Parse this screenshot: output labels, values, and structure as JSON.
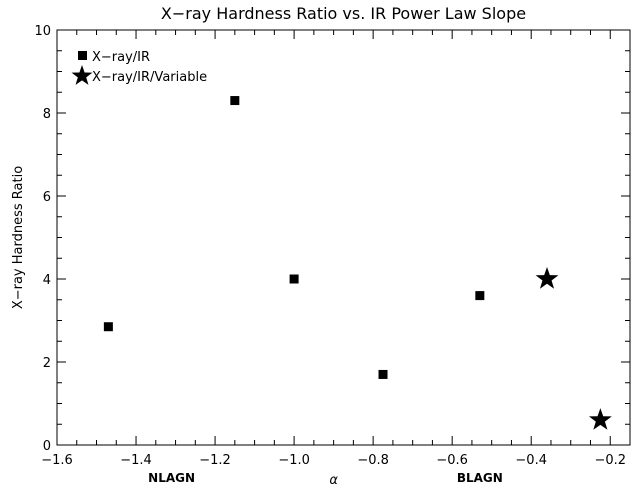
{
  "chart_data": {
    "type": "scatter",
    "title": "X−ray Hardness Ratio vs. IR Power Law Slope",
    "xlabel": "α",
    "ylabel": "X−ray Hardness Ratio",
    "xlim": [
      -1.6,
      -0.15
    ],
    "ylim": [
      0,
      10
    ],
    "x_ticks": [
      -1.6,
      -1.4,
      -1.2,
      -1.0,
      -0.8,
      -0.6,
      -0.4,
      -0.2
    ],
    "x_tick_labels": [
      "−1.6",
      "−1.4",
      "−1.2",
      "−1.0",
      "−0.8",
      "−0.6",
      "−0.4",
      "−0.2"
    ],
    "y_ticks": [
      0,
      2,
      4,
      6,
      8,
      10
    ],
    "y_tick_labels": [
      "0",
      "2",
      "4",
      "6",
      "8",
      "10"
    ],
    "x_region_labels": [
      {
        "text": "NLAGN",
        "x": -1.31
      },
      {
        "text": "BLAGN",
        "x": -0.53
      }
    ],
    "legend": {
      "placement": "top-left",
      "entries": [
        {
          "marker": "square",
          "label": "X−ray/IR"
        },
        {
          "marker": "star",
          "label": "X−ray/IR/Variable"
        }
      ]
    },
    "series": [
      {
        "name": "X−ray/IR",
        "marker": "square",
        "x": [
          -1.47,
          -1.15,
          -1.0,
          -0.775,
          -0.53
        ],
        "y": [
          2.85,
          8.3,
          4.0,
          1.7,
          3.6
        ]
      },
      {
        "name": "X−ray/IR/Variable",
        "marker": "star",
        "x": [
          -0.36,
          -0.225
        ],
        "y": [
          4.0,
          0.6
        ]
      }
    ],
    "grid": false
  }
}
